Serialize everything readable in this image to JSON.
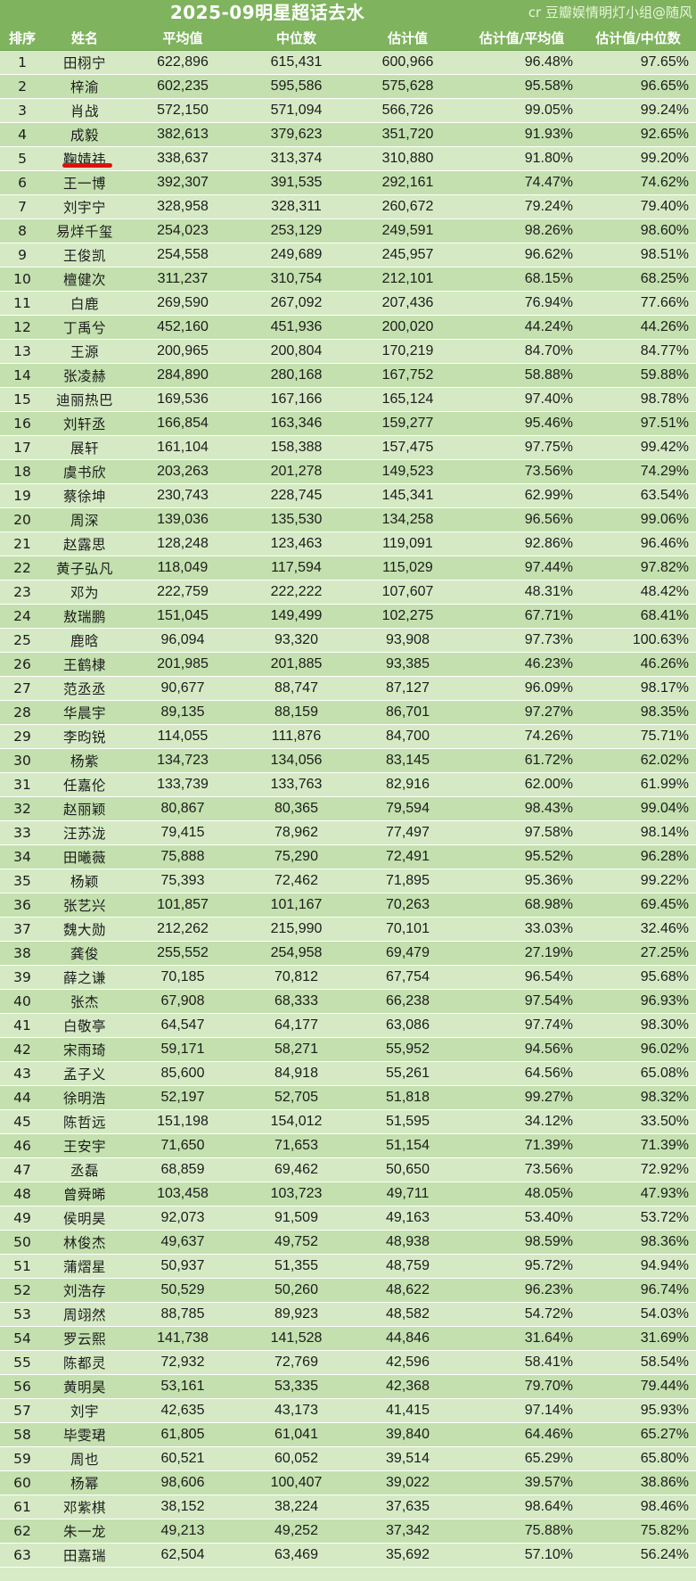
{
  "header": {
    "title": "2025-09明星超话去水",
    "credit": "cr 豆瓣娱情明灯小组@随风"
  },
  "table": {
    "columns": [
      "排序",
      "姓名",
      "平均值",
      "中位数",
      "估计值",
      "估计值/平均值",
      "估计值/中位数"
    ],
    "highlighted_row_rank": "5",
    "rows": [
      [
        "1",
        "田栩宁",
        "622,896",
        "615,431",
        "600,966",
        "96.48%",
        "97.65%"
      ],
      [
        "2",
        "梓渝",
        "602,235",
        "595,586",
        "575,628",
        "95.58%",
        "96.65%"
      ],
      [
        "3",
        "肖战",
        "572,150",
        "571,094",
        "566,726",
        "99.05%",
        "99.24%"
      ],
      [
        "4",
        "成毅",
        "382,613",
        "379,623",
        "351,720",
        "91.93%",
        "92.65%"
      ],
      [
        "5",
        "鞠婧祎",
        "338,637",
        "313,374",
        "310,880",
        "91.80%",
        "99.20%"
      ],
      [
        "6",
        "王一博",
        "392,307",
        "391,535",
        "292,161",
        "74.47%",
        "74.62%"
      ],
      [
        "7",
        "刘宇宁",
        "328,958",
        "328,311",
        "260,672",
        "79.24%",
        "79.40%"
      ],
      [
        "8",
        "易烊千玺",
        "254,023",
        "253,129",
        "249,591",
        "98.26%",
        "98.60%"
      ],
      [
        "9",
        "王俊凯",
        "254,558",
        "249,689",
        "245,957",
        "96.62%",
        "98.51%"
      ],
      [
        "10",
        "檀健次",
        "311,237",
        "310,754",
        "212,101",
        "68.15%",
        "68.25%"
      ],
      [
        "11",
        "白鹿",
        "269,590",
        "267,092",
        "207,436",
        "76.94%",
        "77.66%"
      ],
      [
        "12",
        "丁禹兮",
        "452,160",
        "451,936",
        "200,020",
        "44.24%",
        "44.26%"
      ],
      [
        "13",
        "王源",
        "200,965",
        "200,804",
        "170,219",
        "84.70%",
        "84.77%"
      ],
      [
        "14",
        "张凌赫",
        "284,890",
        "280,168",
        "167,752",
        "58.88%",
        "59.88%"
      ],
      [
        "15",
        "迪丽热巴",
        "169,536",
        "167,166",
        "165,124",
        "97.40%",
        "98.78%"
      ],
      [
        "16",
        "刘轩丞",
        "166,854",
        "163,346",
        "159,277",
        "95.46%",
        "97.51%"
      ],
      [
        "17",
        "展轩",
        "161,104",
        "158,388",
        "157,475",
        "97.75%",
        "99.42%"
      ],
      [
        "18",
        "虞书欣",
        "203,263",
        "201,278",
        "149,523",
        "73.56%",
        "74.29%"
      ],
      [
        "19",
        "蔡徐坤",
        "230,743",
        "228,745",
        "145,341",
        "62.99%",
        "63.54%"
      ],
      [
        "20",
        "周深",
        "139,036",
        "135,530",
        "134,258",
        "96.56%",
        "99.06%"
      ],
      [
        "21",
        "赵露思",
        "128,248",
        "123,463",
        "119,091",
        "92.86%",
        "96.46%"
      ],
      [
        "22",
        "黄子弘凡",
        "118,049",
        "117,594",
        "115,029",
        "97.44%",
        "97.82%"
      ],
      [
        "23",
        "邓为",
        "222,759",
        "222,222",
        "107,607",
        "48.31%",
        "48.42%"
      ],
      [
        "24",
        "敖瑞鹏",
        "151,045",
        "149,499",
        "102,275",
        "67.71%",
        "68.41%"
      ],
      [
        "25",
        "鹿晗",
        "96,094",
        "93,320",
        "93,908",
        "97.73%",
        "100.63%"
      ],
      [
        "26",
        "王鹤棣",
        "201,985",
        "201,885",
        "93,385",
        "46.23%",
        "46.26%"
      ],
      [
        "27",
        "范丞丞",
        "90,677",
        "88,747",
        "87,127",
        "96.09%",
        "98.17%"
      ],
      [
        "28",
        "华晨宇",
        "89,135",
        "88,159",
        "86,701",
        "97.27%",
        "98.35%"
      ],
      [
        "29",
        "李昀锐",
        "114,055",
        "111,876",
        "84,700",
        "74.26%",
        "75.71%"
      ],
      [
        "30",
        "杨紫",
        "134,723",
        "134,056",
        "83,145",
        "61.72%",
        "62.02%"
      ],
      [
        "31",
        "任嘉伦",
        "133,739",
        "133,763",
        "82,916",
        "62.00%",
        "61.99%"
      ],
      [
        "32",
        "赵丽颖",
        "80,867",
        "80,365",
        "79,594",
        "98.43%",
        "99.04%"
      ],
      [
        "33",
        "汪苏泷",
        "79,415",
        "78,962",
        "77,497",
        "97.58%",
        "98.14%"
      ],
      [
        "34",
        "田曦薇",
        "75,888",
        "75,290",
        "72,491",
        "95.52%",
        "96.28%"
      ],
      [
        "35",
        "杨颖",
        "75,393",
        "72,462",
        "71,895",
        "95.36%",
        "99.22%"
      ],
      [
        "36",
        "张艺兴",
        "101,857",
        "101,167",
        "70,263",
        "68.98%",
        "69.45%"
      ],
      [
        "37",
        "魏大勋",
        "212,262",
        "215,990",
        "70,101",
        "33.03%",
        "32.46%"
      ],
      [
        "38",
        "龚俊",
        "255,552",
        "254,958",
        "69,479",
        "27.19%",
        "27.25%"
      ],
      [
        "39",
        "薛之谦",
        "70,185",
        "70,812",
        "67,754",
        "96.54%",
        "95.68%"
      ],
      [
        "40",
        "张杰",
        "67,908",
        "68,333",
        "66,238",
        "97.54%",
        "96.93%"
      ],
      [
        "41",
        "白敬亭",
        "64,547",
        "64,177",
        "63,086",
        "97.74%",
        "98.30%"
      ],
      [
        "42",
        "宋雨琦",
        "59,171",
        "58,271",
        "55,952",
        "94.56%",
        "96.02%"
      ],
      [
        "43",
        "孟子义",
        "85,600",
        "84,918",
        "55,261",
        "64.56%",
        "65.08%"
      ],
      [
        "44",
        "徐明浩",
        "52,197",
        "52,705",
        "51,818",
        "99.27%",
        "98.32%"
      ],
      [
        "45",
        "陈哲远",
        "151,198",
        "154,012",
        "51,595",
        "34.12%",
        "33.50%"
      ],
      [
        "46",
        "王安宇",
        "71,650",
        "71,653",
        "51,154",
        "71.39%",
        "71.39%"
      ],
      [
        "47",
        "丞磊",
        "68,859",
        "69,462",
        "50,650",
        "73.56%",
        "72.92%"
      ],
      [
        "48",
        "曾舜晞",
        "103,458",
        "103,723",
        "49,711",
        "48.05%",
        "47.93%"
      ],
      [
        "49",
        "侯明昊",
        "92,073",
        "91,509",
        "49,163",
        "53.40%",
        "53.72%"
      ],
      [
        "50",
        "林俊杰",
        "49,637",
        "49,752",
        "48,938",
        "98.59%",
        "98.36%"
      ],
      [
        "51",
        "蒲熠星",
        "50,937",
        "51,355",
        "48,759",
        "95.72%",
        "94.94%"
      ],
      [
        "52",
        "刘浩存",
        "50,529",
        "50,260",
        "48,622",
        "96.23%",
        "96.74%"
      ],
      [
        "53",
        "周翊然",
        "88,785",
        "89,923",
        "48,582",
        "54.72%",
        "54.03%"
      ],
      [
        "54",
        "罗云熙",
        "141,738",
        "141,528",
        "44,846",
        "31.64%",
        "31.69%"
      ],
      [
        "55",
        "陈都灵",
        "72,932",
        "72,769",
        "42,596",
        "58.41%",
        "58.54%"
      ],
      [
        "56",
        "黄明昊",
        "53,161",
        "53,335",
        "42,368",
        "79.70%",
        "79.44%"
      ],
      [
        "57",
        "刘宇",
        "42,635",
        "43,173",
        "41,415",
        "97.14%",
        "95.93%"
      ],
      [
        "58",
        "毕雯珺",
        "61,805",
        "61,041",
        "39,840",
        "64.46%",
        "65.27%"
      ],
      [
        "59",
        "周也",
        "60,521",
        "60,052",
        "39,514",
        "65.29%",
        "65.80%"
      ],
      [
        "60",
        "杨幂",
        "98,606",
        "100,407",
        "39,022",
        "39.57%",
        "38.86%"
      ],
      [
        "61",
        "邓紫棋",
        "38,152",
        "38,224",
        "37,635",
        "98.64%",
        "98.46%"
      ],
      [
        "62",
        "朱一龙",
        "49,213",
        "49,252",
        "37,342",
        "75.88%",
        "75.82%"
      ],
      [
        "63",
        "田嘉瑞",
        "62,504",
        "63,469",
        "35,692",
        "57.10%",
        "56.24%"
      ]
    ]
  },
  "colors": {
    "header_bg": "#7fb35e",
    "row_light": "#d5eac4",
    "row_dark": "#c3e0ae",
    "highlight_mark": "#e01010"
  }
}
